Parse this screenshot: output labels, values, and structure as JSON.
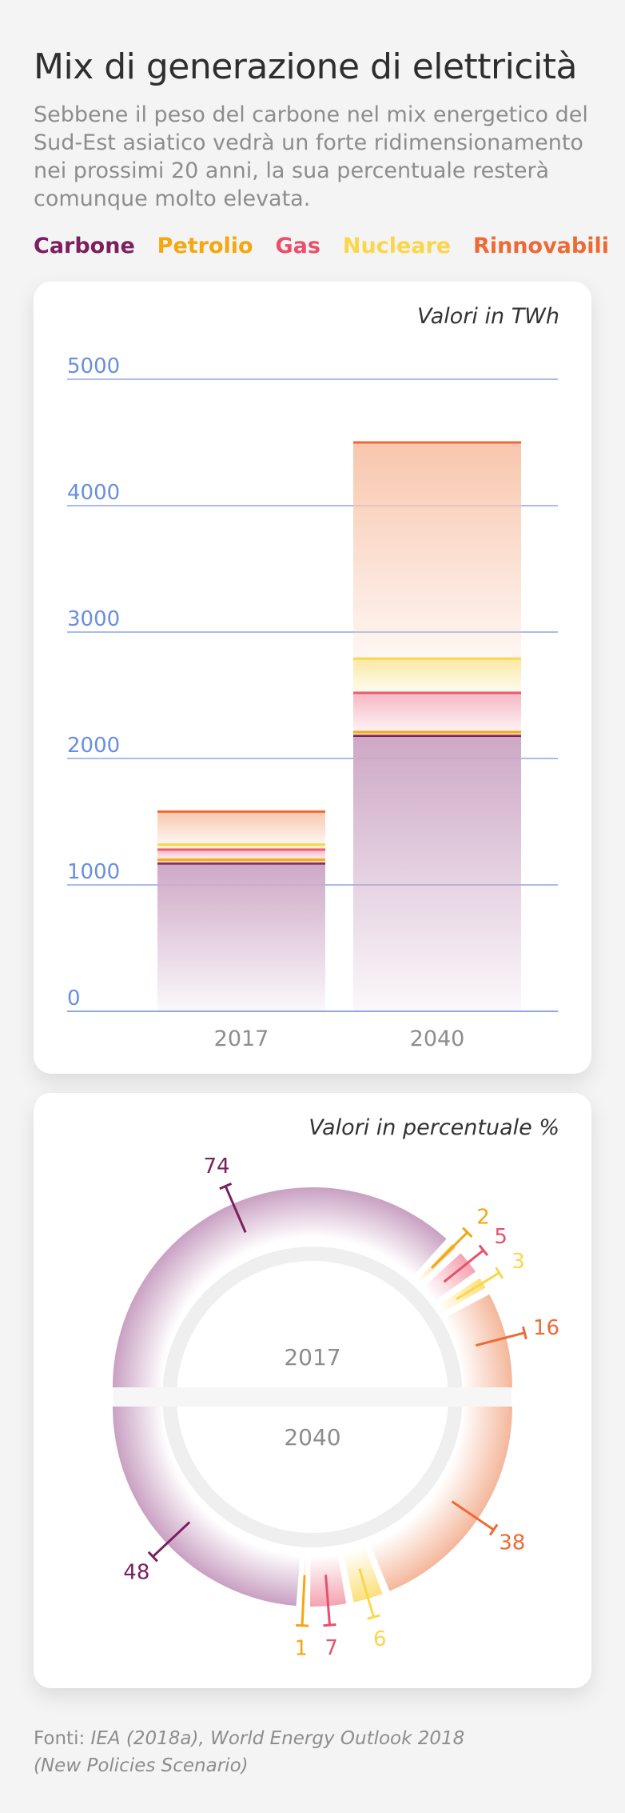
{
  "header": {
    "title": "Mix di generazione di elettricità",
    "subtitle": "Sebbene il peso del carbone nel mix energetico del Sud-Est asiatico vedrà un forte ridimensionamento nei prossimi 20 anni, la sua percentuale resterà comunque molto elevata."
  },
  "legend": [
    {
      "label": "Carbone",
      "color": "#7b1f5e"
    },
    {
      "label": "Petrolio",
      "color": "#f5a712"
    },
    {
      "label": "Gas",
      "color": "#e8506b"
    },
    {
      "label": "Nucleare",
      "color": "#fbd64a"
    },
    {
      "label": "Rinnovabili",
      "color": "#ee6a35"
    }
  ],
  "chart_data": [
    {
      "type": "bar",
      "note": "Valori in TWh",
      "categories": [
        "2017",
        "2040"
      ],
      "ylim": [
        0,
        5000
      ],
      "yticks": [
        0,
        1000,
        2000,
        3000,
        4000,
        5000
      ],
      "stacked": true,
      "grid": true,
      "series": [
        {
          "name": "Carbone",
          "values": [
            1170,
            2180
          ],
          "color": "#7b1f5e",
          "fill": "#cda8c6"
        },
        {
          "name": "Petrolio",
          "values": [
            30,
            30
          ],
          "color": "#f5a712",
          "fill": "#f9d78a"
        },
        {
          "name": "Gas",
          "values": [
            80,
            310
          ],
          "color": "#e8506b",
          "fill": "#f6b6c2"
        },
        {
          "name": "Nucleare",
          "values": [
            40,
            270
          ],
          "color": "#fbd64a",
          "fill": "#fbe8a2"
        },
        {
          "name": "Rinnovabili",
          "values": [
            260,
            1710
          ],
          "color": "#ee6a35",
          "fill": "#f8c6ad"
        }
      ]
    },
    {
      "type": "pie",
      "note": "Valori in percentuale %",
      "years": [
        "2017",
        "2040"
      ],
      "series": [
        {
          "name": "Carbone",
          "values": [
            74,
            48
          ],
          "color": "#7b1f5e",
          "fill": "#c9a0c2"
        },
        {
          "name": "Petrolio",
          "values": [
            2,
            1
          ],
          "color": "#f5a712",
          "fill": "#f7c45a"
        },
        {
          "name": "Gas",
          "values": [
            5,
            7
          ],
          "color": "#e8506b",
          "fill": "#f3a4b1"
        },
        {
          "name": "Nucleare",
          "values": [
            3,
            6
          ],
          "color": "#fbd64a",
          "fill": "#fbe07c"
        },
        {
          "name": "Rinnovabili",
          "values": [
            16,
            38
          ],
          "color": "#ee6a35",
          "fill": "#f4b79b"
        }
      ],
      "labels_2017": [
        "74",
        "2",
        "5",
        "3",
        "16"
      ],
      "labels_2040": [
        "48",
        "1",
        "7",
        "6",
        "38"
      ]
    }
  ],
  "footer": {
    "prefix": "Fonti: ",
    "line1": "IEA (2018a), World Energy Outlook 2018",
    "line2": "(New Policies Scenario)"
  }
}
